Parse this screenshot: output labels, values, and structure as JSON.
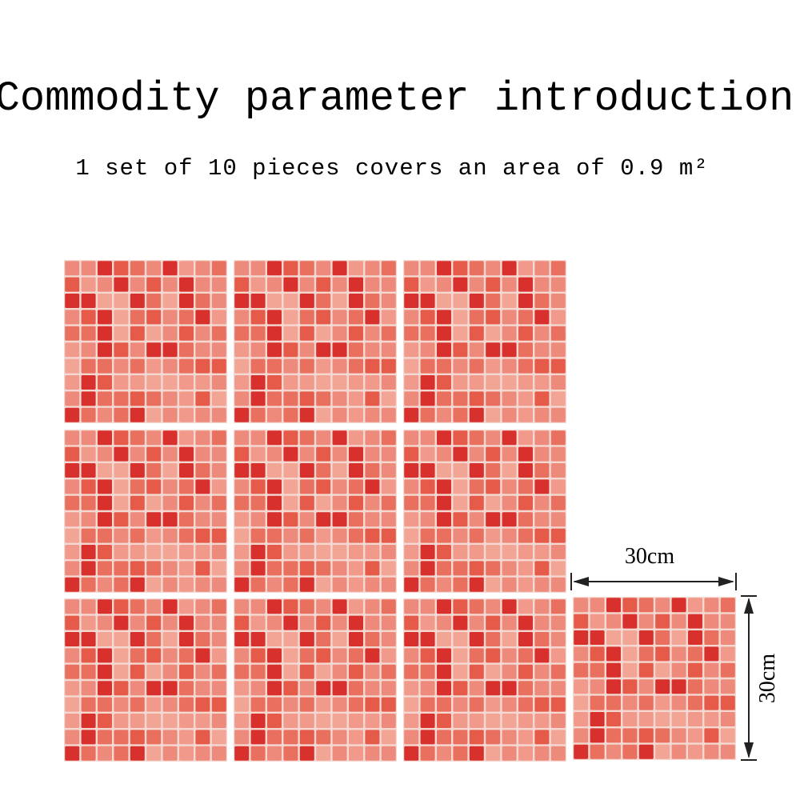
{
  "header": {
    "title": "Commodity parameter introduction",
    "subtitle": "1 set of 10 pieces covers an area of 0.9 m²"
  },
  "dimensions": {
    "width": "30cm",
    "height": "30cm"
  }
}
